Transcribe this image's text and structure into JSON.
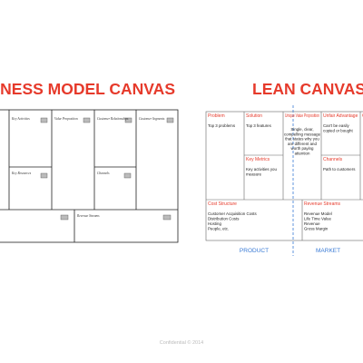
{
  "business_model_canvas": {
    "title": "BUSINESS MODEL CANVAS",
    "blocks": [
      "Key Activities",
      "Value Proposition",
      "Customer Relationships",
      "Customer Segments",
      "Key Resources",
      "Channels",
      "Revenue Streams"
    ]
  },
  "lean_canvas": {
    "title": "LEAN CANVAS",
    "blocks": [
      {
        "label": "Problem",
        "text": [
          "Top 3 problems"
        ]
      },
      {
        "label": "Solution",
        "text": [
          "Top 3 features"
        ]
      },
      {
        "label": "Unique Value Proposition",
        "text": [
          "Single, clear,",
          "compelling message",
          "that states why you",
          "are different and",
          "worth paying",
          "attention"
        ]
      },
      {
        "label": "Unfair Advantage",
        "text": [
          "Can't be easily",
          "copied or bought"
        ]
      },
      {
        "label": "Customer Segments",
        "text": []
      },
      {
        "label": "Key Metrics",
        "text": [
          "Key activities you",
          "measure"
        ]
      },
      {
        "label": "Channels",
        "text": [
          "Path to customers"
        ]
      },
      {
        "label": "Cost Structure",
        "text": [
          "Customer Acquisition Costs",
          "Distribution Costs",
          "Hosting",
          "People, etc."
        ]
      },
      {
        "label": "Revenue Streams",
        "text": [
          "Revenue Model",
          "Life Time Value",
          "Revenue",
          "Gross Margin"
        ]
      }
    ],
    "footer_labels": [
      "PRODUCT",
      "MARKET"
    ]
  },
  "footer": "Confidential © 2014"
}
